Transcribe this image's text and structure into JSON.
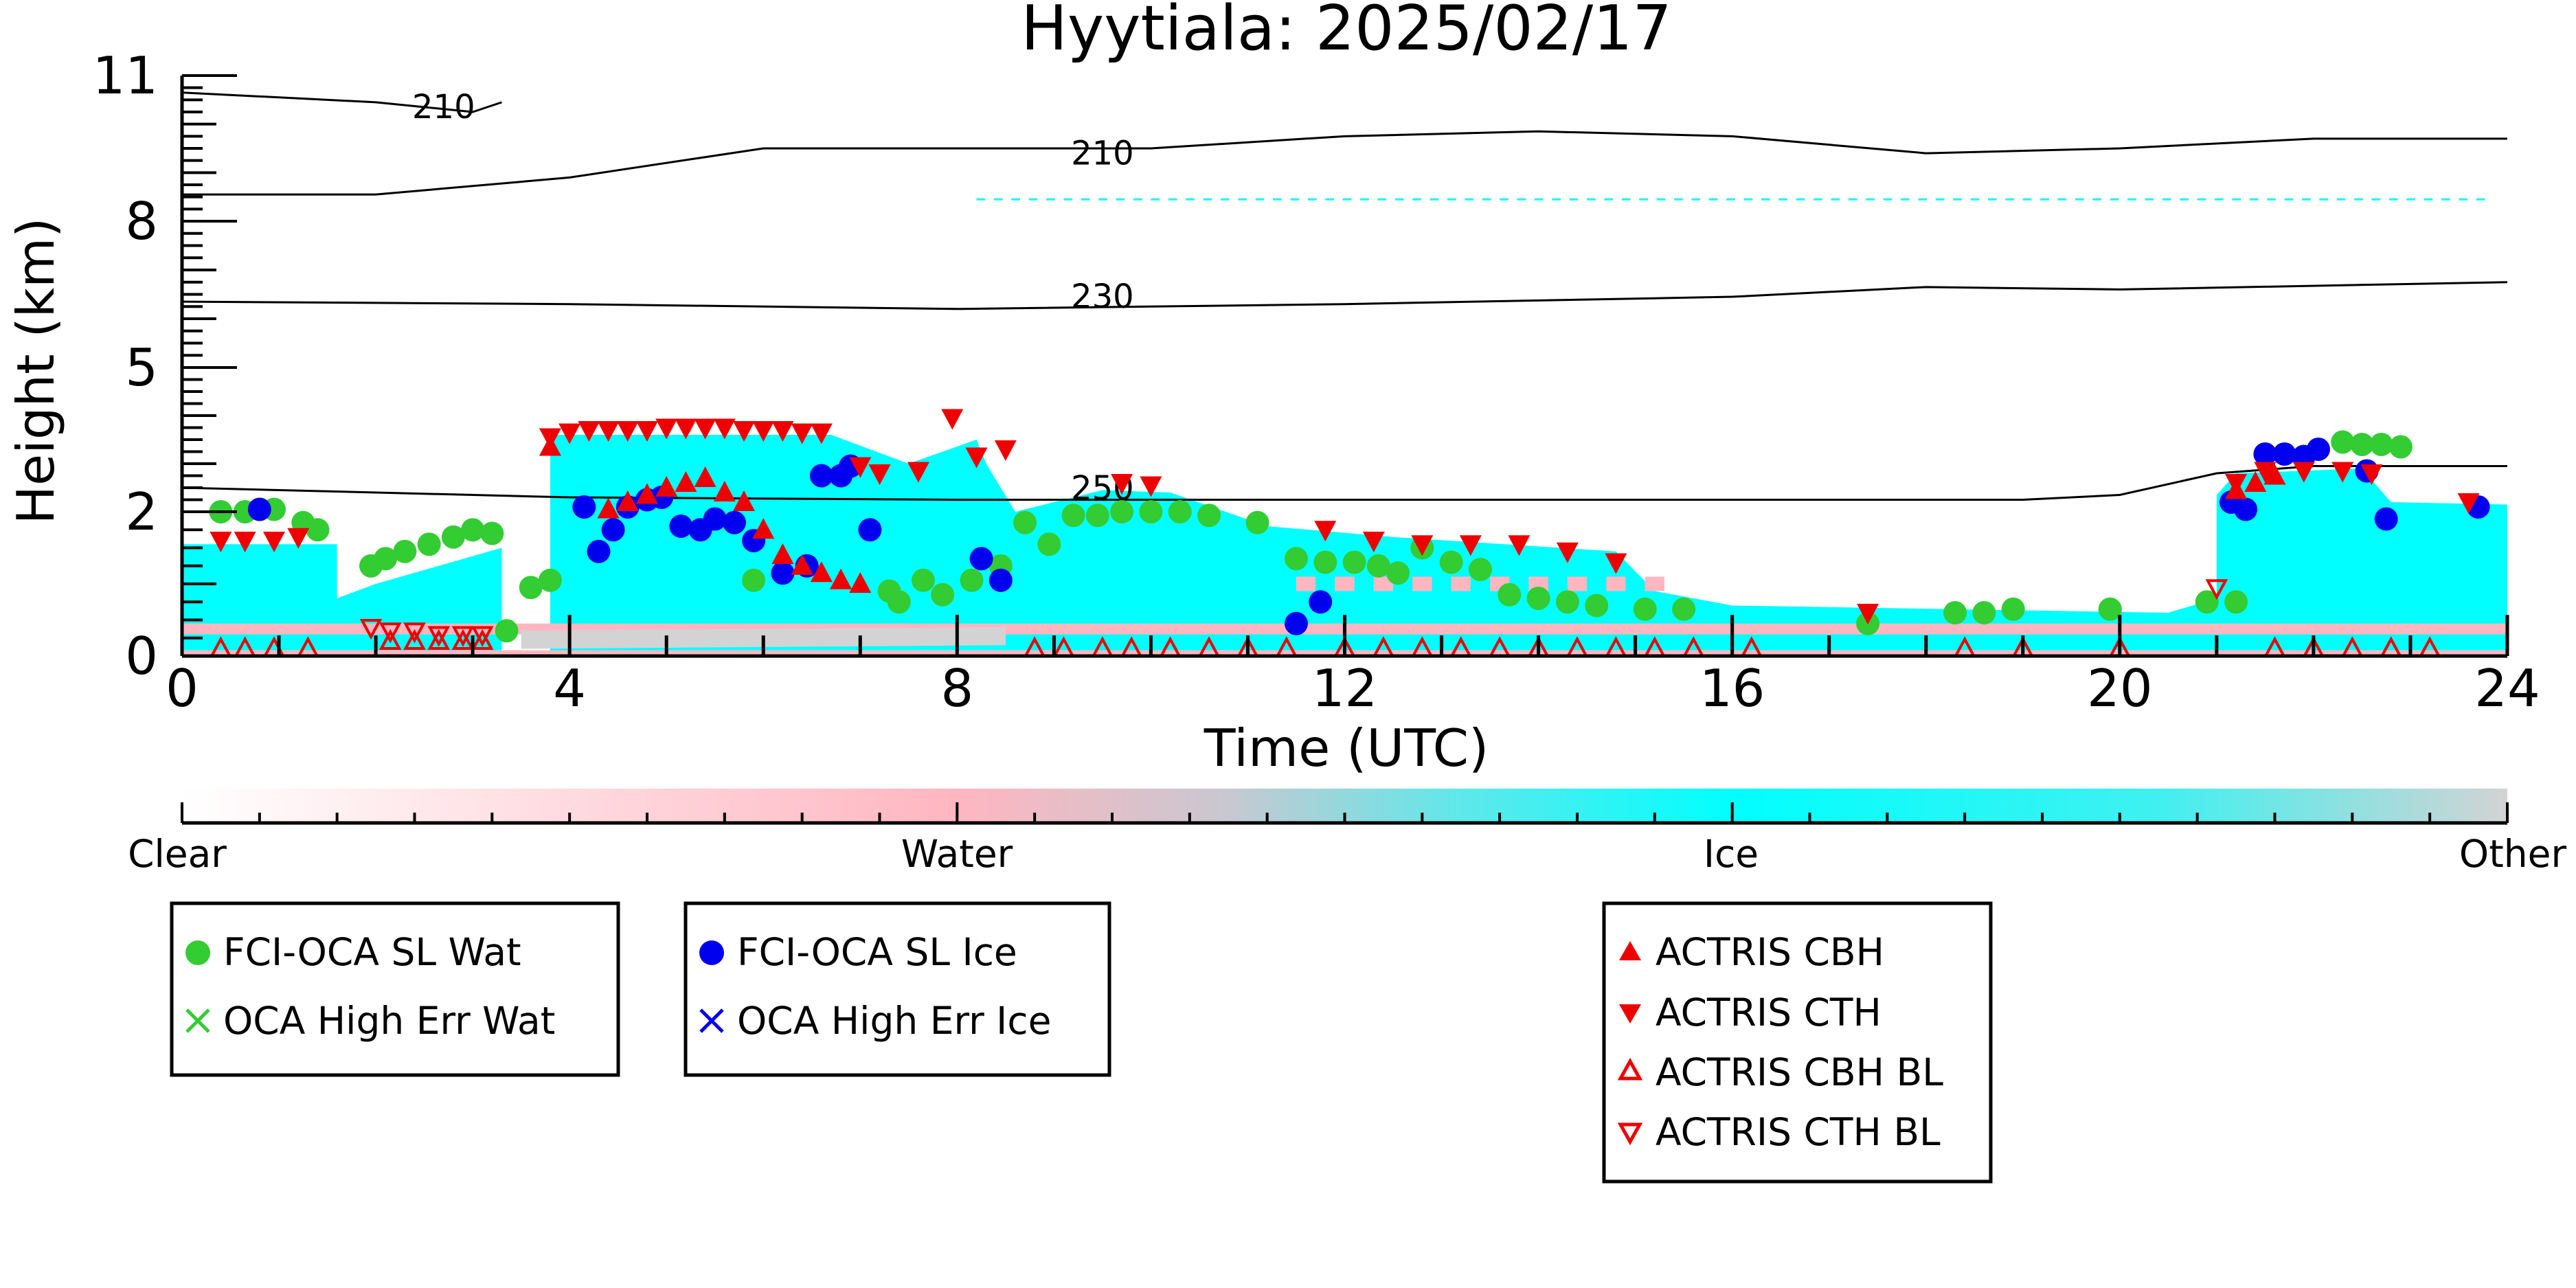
{
  "chart_data": {
    "type": "scatter",
    "title": "Hyytiala: 2025/02/17",
    "xlabel": "Time (UTC)",
    "ylabel": "Height (km)",
    "xlim": [
      0,
      24
    ],
    "ylim": [
      0,
      11
    ],
    "x_ticks": [
      0,
      4,
      8,
      12,
      16,
      20,
      24
    ],
    "y_ticks": [
      {
        "value": 0,
        "label": "0"
      },
      {
        "value": 2,
        "label": "2"
      },
      {
        "value": 5,
        "label": "5"
      },
      {
        "value": 8,
        "label": "8"
      },
      {
        "value": 11,
        "label": "11"
      }
    ],
    "y_scale": "nonlinear (compressed above ~3 km)",
    "colorbar": {
      "labels": [
        "Clear",
        "Water",
        "Ice",
        "Other"
      ],
      "colors": {
        "Clear": "#ffffff",
        "Water": "#ffb6c1",
        "Ice": "#00ffff",
        "Other": "#d3d3d3"
      }
    },
    "contours": [
      {
        "label": "210",
        "x": [
          0,
          2,
          4,
          6,
          8,
          10,
          12,
          14,
          16,
          18,
          20,
          22,
          24
        ],
        "y": [
          8.55,
          8.55,
          8.9,
          9.5,
          9.5,
          9.5,
          9.75,
          9.85,
          9.75,
          9.4,
          9.5,
          9.7,
          9.7
        ]
      },
      {
        "label": "210",
        "x": [
          0,
          1,
          2,
          3,
          3.3
        ],
        "y": [
          10.65,
          10.55,
          10.45,
          10.25,
          10.45
        ]
      },
      {
        "label": "230",
        "x": [
          0,
          4,
          8,
          12,
          16,
          18,
          20,
          24
        ],
        "y": [
          6.35,
          6.3,
          6.2,
          6.3,
          6.45,
          6.65,
          6.6,
          6.75
        ]
      },
      {
        "label": "250",
        "x": [
          0,
          4,
          8,
          12,
          16,
          19,
          20,
          21,
          22,
          24
        ],
        "y": [
          2.5,
          2.3,
          2.25,
          2.25,
          2.25,
          2.25,
          2.35,
          2.8,
          2.95,
          2.95
        ]
      }
    ],
    "series": [
      {
        "name": "FCI-OCA SL Wat",
        "color": "#33cc33",
        "marker": "circle",
        "x": [
          0.4,
          0.65,
          0.95,
          1.25,
          1.4,
          1.95,
          2.1,
          2.3,
          2.55,
          2.8,
          3.0,
          3.2,
          3.35,
          3.6,
          3.8,
          5.9,
          7.3,
          7.4,
          7.65,
          7.85,
          8.15,
          8.45,
          8.7,
          8.95,
          9.2,
          9.45,
          9.7,
          10.0,
          10.3,
          10.6,
          11.1,
          11.5,
          11.8,
          12.1,
          12.35,
          12.55,
          12.8,
          13.1,
          13.4,
          13.7,
          14.0,
          14.3,
          14.6,
          15.1,
          15.5,
          17.4,
          18.3,
          18.6,
          18.9,
          19.9,
          20.9,
          21.2,
          22.3,
          22.5,
          22.7,
          22.9
        ],
        "y": [
          2.0,
          2.0,
          2.05,
          1.85,
          1.75,
          1.25,
          1.35,
          1.45,
          1.55,
          1.65,
          1.75,
          1.7,
          0.35,
          0.95,
          1.05,
          1.05,
          0.9,
          0.75,
          1.05,
          0.85,
          1.05,
          1.25,
          1.85,
          1.55,
          1.95,
          1.95,
          2.0,
          2.0,
          2.0,
          1.95,
          1.85,
          1.35,
          1.3,
          1.3,
          1.25,
          1.15,
          1.5,
          1.3,
          1.2,
          0.85,
          0.8,
          0.75,
          0.7,
          0.65,
          0.65,
          0.45,
          0.6,
          0.6,
          0.65,
          0.65,
          0.75,
          0.75,
          3.45,
          3.4,
          3.4,
          3.35
        ]
      },
      {
        "name": "OCA High Err Wat",
        "color": "#33cc33",
        "marker": "x",
        "x": [],
        "y": []
      },
      {
        "name": "FCI-OCA SL Ice",
        "color": "#0000ee",
        "marker": "circle",
        "x": [
          0.8,
          4.15,
          4.3,
          4.45,
          4.6,
          4.8,
          4.95,
          5.15,
          5.35,
          5.5,
          5.7,
          5.9,
          6.2,
          6.45,
          6.6,
          6.8,
          6.9,
          7.1,
          8.25,
          8.45,
          11.5,
          11.75,
          21.15,
          21.3,
          21.5,
          21.7,
          21.9,
          22.05,
          22.55,
          22.75,
          23.7
        ],
        "y": [
          2.05,
          2.1,
          1.45,
          1.75,
          2.1,
          2.25,
          2.3,
          1.8,
          1.75,
          1.9,
          1.85,
          1.6,
          1.15,
          1.25,
          2.75,
          2.75,
          2.95,
          1.75,
          1.35,
          1.05,
          0.45,
          0.75,
          2.2,
          2.05,
          3.2,
          3.2,
          3.15,
          3.3,
          2.85,
          1.9,
          2.1
        ]
      },
      {
        "name": "OCA High Err Ice",
        "color": "#0000ee",
        "marker": "x",
        "x": [],
        "y": []
      },
      {
        "name": "ACTRIS CBH",
        "color": "#ee0000",
        "marker": "triangle-up",
        "x": [
          3.8,
          4.4,
          4.6,
          4.8,
          5.0,
          5.2,
          5.4,
          5.6,
          5.8,
          6.0,
          6.2,
          6.4,
          6.6,
          6.8,
          7.0,
          21.2,
          21.4,
          21.6
        ],
        "y": [
          3.35,
          2.05,
          2.2,
          2.35,
          2.5,
          2.6,
          2.7,
          2.4,
          2.2,
          1.75,
          1.4,
          1.25,
          1.15,
          1.05,
          1.0,
          2.45,
          2.6,
          2.75
        ]
      },
      {
        "name": "ACTRIS CTH",
        "color": "#ee0000",
        "marker": "triangle-down",
        "x": [
          0.4,
          0.65,
          0.95,
          1.2,
          3.8,
          4.0,
          4.2,
          4.4,
          4.6,
          4.8,
          5.0,
          5.2,
          5.4,
          5.6,
          5.8,
          6.0,
          6.2,
          6.4,
          6.6,
          7.0,
          7.2,
          7.6,
          7.95,
          8.2,
          8.5,
          9.7,
          10.0,
          11.8,
          12.3,
          12.8,
          13.3,
          13.8,
          14.3,
          14.8,
          17.4,
          21.2,
          21.5,
          21.9,
          22.3,
          22.6,
          23.6
        ],
        "y": [
          1.6,
          1.6,
          1.6,
          1.65,
          3.55,
          3.65,
          3.7,
          3.7,
          3.7,
          3.7,
          3.75,
          3.75,
          3.75,
          3.75,
          3.7,
          3.7,
          3.7,
          3.65,
          3.65,
          2.95,
          2.8,
          2.85,
          3.95,
          3.15,
          3.3,
          2.6,
          2.55,
          1.75,
          1.6,
          1.55,
          1.55,
          1.55,
          1.45,
          1.3,
          0.6,
          2.6,
          2.85,
          2.85,
          2.85,
          2.8,
          2.2
        ]
      },
      {
        "name": "ACTRIS CBH BL",
        "color": "#ee0000",
        "marker": "triangle-up-open",
        "x": [
          0.4,
          0.65,
          0.95,
          1.3,
          2.15,
          2.4,
          2.65,
          2.9,
          3.1,
          8.8,
          9.1,
          9.5,
          9.8,
          10.2,
          10.6,
          11.0,
          11.4,
          12.0,
          12.4,
          12.8,
          13.2,
          13.6,
          14.0,
          14.4,
          14.8,
          15.2,
          15.6,
          16.2,
          18.4,
          19.0,
          20.0,
          21.6,
          22.0,
          22.4,
          22.8,
          23.2
        ],
        "y": [
          0.1,
          0.1,
          0.1,
          0.1,
          0.2,
          0.2,
          0.2,
          0.2,
          0.2,
          0.1,
          0.1,
          0.1,
          0.1,
          0.1,
          0.1,
          0.1,
          0.1,
          0.1,
          0.1,
          0.1,
          0.1,
          0.1,
          0.1,
          0.1,
          0.1,
          0.1,
          0.1,
          0.1,
          0.1,
          0.1,
          0.1,
          0.1,
          0.1,
          0.1,
          0.1,
          0.1
        ]
      },
      {
        "name": "ACTRIS CTH BL",
        "color": "#ee0000",
        "marker": "triangle-down-open",
        "x": [
          1.95,
          2.15,
          2.4,
          2.65,
          2.9,
          3.1,
          21.0
        ],
        "y": [
          0.4,
          0.35,
          0.35,
          0.3,
          0.3,
          0.3,
          0.95
        ]
      }
    ]
  }
}
